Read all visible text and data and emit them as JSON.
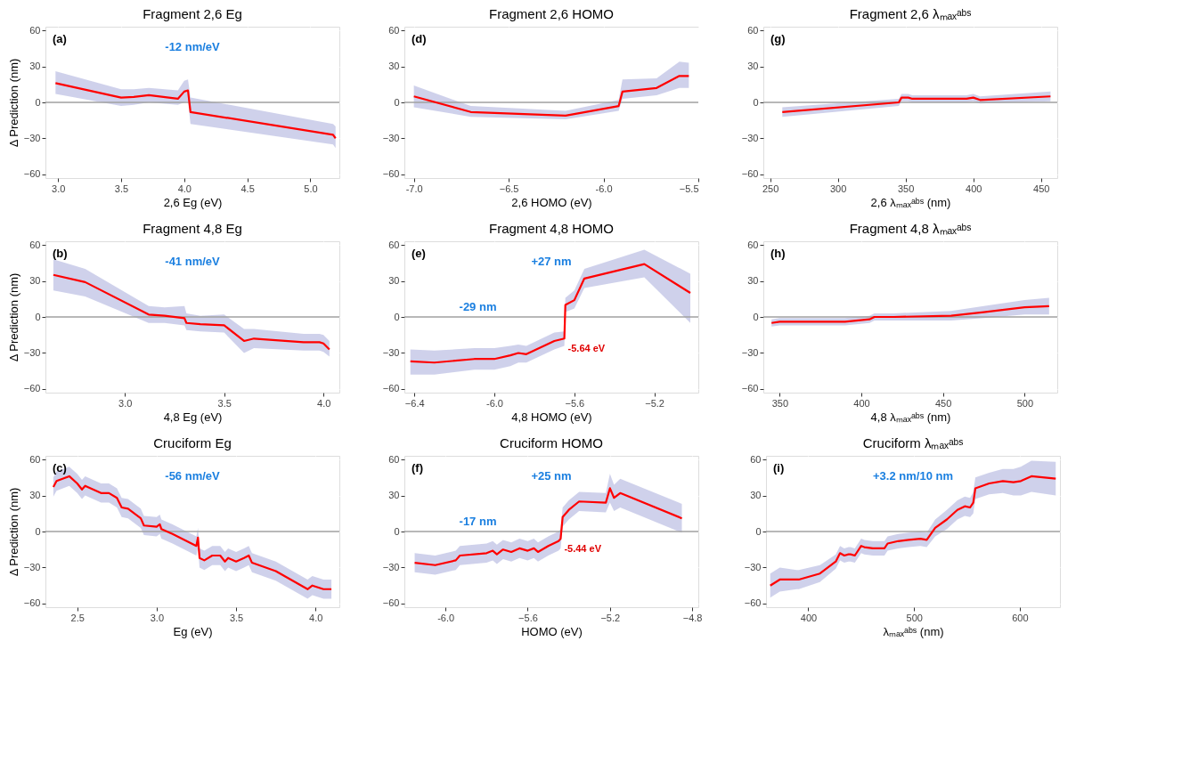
{
  "chart_data": [
    {
      "type": "line",
      "title": "Fragment 2,6 Eg",
      "xlabel": "2,6 Eg (eV)",
      "ylabel": "Δ Prediction (nm)",
      "xlim": [
        2.9,
        5.23
      ],
      "xticks": [
        {
          "value": 3,
          "label": "3.0"
        },
        3.5,
        {
          "value": 4,
          "label": "4.0"
        },
        4.5,
        {
          "value": 5,
          "label": "5.0"
        }
      ],
      "ylim": [
        -63,
        63
      ],
      "yticks": [
        -60,
        -30,
        0,
        30,
        60
      ],
      "grid": true,
      "legend": false,
      "series": [
        {
          "color": "#ff0000",
          "x": [
            2.98,
            3.5,
            3.6,
            3.72,
            3.95,
            4.0,
            4.03,
            4.05,
            5.18,
            5.2
          ],
          "values": [
            16,
            4,
            4.5,
            6,
            3,
            9,
            10,
            -8,
            -27,
            -30
          ],
          "lower": [
            7,
            -3,
            -2,
            0,
            -2,
            0,
            1,
            -18,
            -35,
            -38
          ],
          "upper": [
            26,
            11,
            11,
            12,
            10,
            18,
            19,
            4,
            -18,
            -20
          ]
        }
      ],
      "ref_lines": [
        {
          "axis": "y",
          "value": 0,
          "color": "#a0a0a0"
        }
      ],
      "annotations": [
        "(a)",
        "-12 nm/eV"
      ]
    },
    {
      "type": "line",
      "title": "Fragment 2,6 HOMO",
      "xlabel": "2,6 HOMO (eV)",
      "xlim": [
        -7.05,
        -5.5
      ],
      "xticks": [
        {
          "value": -7,
          "label": "-7.0"
        },
        -6.5,
        {
          "value": -6,
          "label": "-6.0"
        },
        -5.5
      ],
      "ylim": [
        -63,
        63
      ],
      "yticks": [
        -60,
        -30,
        0,
        30,
        60
      ],
      "grid": true,
      "legend": false,
      "series": [
        {
          "color": "#ff0000",
          "x": [
            -7.0,
            -6.7,
            -6.2,
            -5.92,
            -5.9,
            -5.72,
            -5.6,
            -5.55
          ],
          "values": [
            5,
            -8,
            -11,
            -3,
            9,
            12,
            22,
            22
          ],
          "lower": [
            -4,
            -12,
            -14,
            -7,
            3,
            6,
            12,
            12
          ],
          "upper": [
            14,
            -3,
            -7,
            2,
            19,
            20,
            34,
            33
          ]
        }
      ],
      "ref_lines": [
        {
          "axis": "y",
          "value": 0,
          "color": "#a0a0a0"
        }
      ],
      "annotations": [
        "(d)"
      ]
    },
    {
      "type": "line",
      "title": "Fragment 2,6 λₘₐₓᵃᵇˢ",
      "xlabel": "2,6 λₘₐₓᵃᵇˢ (nm)",
      "xlim": [
        245,
        462
      ],
      "xticks": [
        250,
        300,
        350,
        400,
        450
      ],
      "ylim": [
        -63,
        63
      ],
      "yticks": [
        -60,
        -30,
        0,
        30,
        60
      ],
      "grid": true,
      "legend": false,
      "series": [
        {
          "color": "#ff0000",
          "x": [
            259,
            345,
            347,
            352,
            355,
            385,
            395,
            400,
            405,
            457
          ],
          "values": [
            -8,
            0,
            4,
            4,
            3,
            3,
            3,
            4,
            2,
            5
          ],
          "lower": [
            -12,
            -3,
            1,
            1,
            0,
            0,
            0,
            1,
            -1,
            1
          ],
          "upper": [
            -4,
            3,
            7,
            7,
            6,
            6,
            6,
            7,
            5,
            9
          ]
        }
      ],
      "ref_lines": [
        {
          "axis": "y",
          "value": 0,
          "color": "#a0a0a0"
        }
      ],
      "annotations": [
        "(g)"
      ]
    },
    {
      "type": "line",
      "title": "Fragment 4,8 Eg",
      "xlabel": "4,8 Eg (eV)",
      "ylabel": "Δ Prediction (nm)",
      "xlim": [
        2.6,
        4.08
      ],
      "xticks": [
        {
          "value": 3,
          "label": "3.0"
        },
        3.5,
        {
          "value": 4,
          "label": "4.0"
        }
      ],
      "ylim": [
        -63,
        63
      ],
      "yticks": [
        -60,
        -30,
        0,
        30,
        60
      ],
      "grid": true,
      "legend": false,
      "series": [
        {
          "color": "#ff0000",
          "x": [
            2.64,
            2.8,
            3.12,
            3.2,
            3.3,
            3.31,
            3.38,
            3.5,
            3.6,
            3.65,
            3.9,
            3.98,
            4.0,
            4.03
          ],
          "values": [
            35,
            29,
            2,
            1,
            -1,
            -5,
            -6,
            -7,
            -20,
            -18,
            -21,
            -21,
            -22,
            -27
          ],
          "lower": [
            22,
            17,
            -5,
            -5,
            -7,
            -11,
            -12,
            -13,
            -30,
            -26,
            -28,
            -28,
            -29,
            -33
          ],
          "upper": [
            48,
            40,
            9,
            8,
            9,
            3,
            1,
            2,
            -10,
            -10,
            -14,
            -14,
            -15,
            -20
          ]
        }
      ],
      "ref_lines": [
        {
          "axis": "y",
          "value": 0,
          "color": "#a0a0a0"
        }
      ],
      "annotations": [
        "(b)",
        "-41 nm/eV"
      ]
    },
    {
      "type": "line",
      "title": "Fragment 4,8 HOMO",
      "xlabel": "4,8 HOMO (eV)",
      "xlim": [
        -6.45,
        -4.98
      ],
      "xticks": [
        -6.4,
        {
          "value": -6,
          "label": "-6.0"
        },
        -5.6,
        -5.2
      ],
      "ylim": [
        -63,
        63
      ],
      "yticks": [
        -60,
        -30,
        0,
        30,
        60
      ],
      "grid": true,
      "legend": false,
      "series": [
        {
          "color": "#ff0000",
          "x": [
            -6.42,
            -6.3,
            -6.1,
            -6.0,
            -5.92,
            -5.88,
            -5.84,
            -5.7,
            -5.65,
            -5.645,
            -5.6,
            -5.55,
            -5.25,
            -5.02
          ],
          "values": [
            -37,
            -38,
            -35,
            -35,
            -32,
            -30,
            -31,
            -20,
            -18,
            10,
            14,
            32,
            44,
            20
          ],
          "lower": [
            -48,
            -48,
            -44,
            -44,
            -41,
            -38,
            -38,
            -27,
            -24,
            4,
            7,
            24,
            33,
            -5
          ],
          "upper": [
            -27,
            -28,
            -26,
            -26,
            -24,
            -23,
            -24,
            -13,
            -12,
            16,
            22,
            40,
            56,
            36
          ]
        }
      ],
      "ref_lines": [
        {
          "axis": "y",
          "value": 0,
          "color": "#a0a0a0"
        }
      ],
      "annotations": [
        "(e)",
        "+27 nm",
        "-29 nm",
        {
          "text": "-5.64 eV",
          "x": -5.65,
          "y": -18
        }
      ]
    },
    {
      "type": "line",
      "title": "Fragment 4,8 λₘₐₓᵃᵇˢ",
      "xlabel": "4,8 λₘₐₓᵃᵇˢ (nm)",
      "xlim": [
        340,
        520
      ],
      "xticks": [
        350,
        400,
        450,
        500
      ],
      "ylim": [
        -63,
        63
      ],
      "yticks": [
        -60,
        -30,
        0,
        30,
        60
      ],
      "grid": true,
      "legend": false,
      "series": [
        {
          "color": "#ff0000",
          "x": [
            345,
            350,
            375,
            390,
            405,
            408,
            420,
            455,
            475,
            500,
            515
          ],
          "values": [
            -5,
            -4,
            -4,
            -4,
            -2,
            0,
            0,
            1,
            4,
            8,
            9
          ],
          "lower": [
            -8,
            -7,
            -7,
            -7,
            -5,
            -3,
            -3,
            -3,
            -1,
            2,
            2
          ],
          "upper": [
            -2,
            -1,
            -1,
            -1,
            1,
            3,
            3,
            5,
            9,
            14,
            16
          ]
        }
      ],
      "ref_lines": [
        {
          "axis": "y",
          "value": 0,
          "color": "#a0a0a0"
        }
      ],
      "annotations": [
        "(h)"
      ]
    },
    {
      "type": "line",
      "title": "Cruciform Eg",
      "xlabel": "Eg (eV)",
      "ylabel": "Δ Prediction (nm)",
      "xlim": [
        2.3,
        4.15
      ],
      "xticks": [
        2.5,
        {
          "value": 3,
          "label": "3.0"
        },
        3.5,
        {
          "value": 4,
          "label": "4.0"
        }
      ],
      "ylim": [
        -63,
        63
      ],
      "yticks": [
        -60,
        -30,
        0,
        30,
        60
      ],
      "grid": true,
      "legend": false,
      "series": [
        {
          "color": "#ff0000",
          "x": [
            2.35,
            2.37,
            2.45,
            2.5,
            2.53,
            2.55,
            2.65,
            2.7,
            2.75,
            2.78,
            2.82,
            2.87,
            2.9,
            2.92,
            3.0,
            3.02,
            3.03,
            3.1,
            3.25,
            3.26,
            3.27,
            3.3,
            3.35,
            3.4,
            3.43,
            3.45,
            3.5,
            3.55,
            3.58,
            3.6,
            3.75,
            3.95,
            3.98,
            4.05,
            4.1
          ],
          "values": [
            37,
            42,
            46,
            40,
            35,
            38,
            32,
            32,
            28,
            20,
            19,
            14,
            11,
            5,
            4,
            6,
            2,
            -2,
            -12,
            -5,
            -22,
            -24,
            -20,
            -20,
            -25,
            -22,
            -25,
            -22,
            -20,
            -26,
            -33,
            -48,
            -45,
            -48,
            -48
          ],
          "lower": [
            29,
            34,
            38,
            32,
            27,
            30,
            24,
            24,
            20,
            12,
            11,
            6,
            3,
            -3,
            -4,
            -2,
            -6,
            -10,
            -20,
            -13,
            -30,
            -32,
            -28,
            -28,
            -33,
            -30,
            -33,
            -30,
            -28,
            -34,
            -41,
            -56,
            -53,
            -56,
            -56
          ],
          "upper": [
            45,
            50,
            54,
            48,
            43,
            46,
            40,
            40,
            36,
            28,
            27,
            22,
            19,
            13,
            12,
            14,
            10,
            6,
            -4,
            3,
            -14,
            -16,
            -12,
            -12,
            -17,
            -14,
            -17,
            -14,
            -12,
            -18,
            -25,
            -40,
            -37,
            -40,
            -40
          ]
        }
      ],
      "ref_lines": [
        {
          "axis": "y",
          "value": 0,
          "color": "#a0a0a0"
        }
      ],
      "annotations": [
        "(c)",
        "-56 nm/eV"
      ]
    },
    {
      "type": "line",
      "title": "Cruciform HOMO",
      "xlabel": "HOMO (eV)",
      "xlim": [
        -6.2,
        -4.77
      ],
      "xticks": [
        {
          "value": -6,
          "label": "-6.0"
        },
        -5.6,
        -5.2,
        -4.8
      ],
      "ylim": [
        -63,
        63
      ],
      "yticks": [
        -60,
        -30,
        0,
        30,
        60
      ],
      "grid": true,
      "legend": false,
      "series": [
        {
          "color": "#ff0000",
          "x": [
            -6.15,
            -6.05,
            -5.95,
            -5.93,
            -5.8,
            -5.77,
            -5.75,
            -5.72,
            -5.68,
            -5.64,
            -5.6,
            -5.57,
            -5.55,
            -5.5,
            -5.45,
            -5.44,
            -5.43,
            -5.4,
            -5.35,
            -5.22,
            -5.2,
            -5.18,
            -5.15,
            -4.85
          ],
          "values": [
            -26,
            -28,
            -24,
            -20,
            -18,
            -16,
            -19,
            -15,
            -17,
            -14,
            -16,
            -14,
            -17,
            -12,
            -8,
            -6,
            12,
            18,
            25,
            24,
            36,
            28,
            32,
            11
          ],
          "lower": [
            -34,
            -36,
            -32,
            -28,
            -26,
            -24,
            -27,
            -23,
            -25,
            -22,
            -24,
            -22,
            -25,
            -20,
            -16,
            -14,
            4,
            10,
            17,
            16,
            24,
            17,
            20,
            -1
          ],
          "upper": [
            -18,
            -20,
            -16,
            -12,
            -10,
            -8,
            -11,
            -7,
            -9,
            -6,
            -8,
            -6,
            -9,
            -4,
            0,
            2,
            20,
            26,
            33,
            32,
            48,
            39,
            44,
            23
          ]
        }
      ],
      "ref_lines": [
        {
          "axis": "y",
          "value": 0,
          "color": "#a0a0a0"
        }
      ],
      "annotations": [
        "(f)",
        "+25 nm",
        "-17 nm",
        {
          "text": "-5.44 eV",
          "x": -5.44,
          "y": -6
        }
      ]
    },
    {
      "type": "line",
      "title": "Cruciform λₘₐₓᵃᵇˢ",
      "xlabel": "λₘₐₓᵃᵇˢ (nm)",
      "xlim": [
        360,
        638
      ],
      "xticks": [
        400,
        500,
        600
      ],
      "ylim": [
        -63,
        63
      ],
      "yticks": [
        -60,
        -30,
        0,
        30,
        60
      ],
      "grid": true,
      "legend": false,
      "series": [
        {
          "color": "#ff0000",
          "x": [
            364,
            373,
            389,
            391,
            411,
            426,
            430,
            434,
            438,
            440,
            444,
            450,
            453,
            461,
            472,
            475,
            485,
            495,
            506,
            512,
            520,
            531,
            541,
            548,
            553,
            556,
            558,
            571,
            584,
            594,
            601,
            611,
            634
          ],
          "values": [
            -45,
            -40,
            -40,
            -40,
            -35,
            -25,
            -18,
            -20,
            -19,
            -19,
            -20,
            -12,
            -13,
            -14,
            -14,
            -10,
            -8,
            -7,
            -6,
            -7,
            3,
            10,
            18,
            21,
            20,
            24,
            36,
            40,
            42,
            41,
            42,
            46,
            44
          ],
          "lower": [
            -55,
            -50,
            -48,
            -48,
            -42,
            -31,
            -24,
            -26,
            -25,
            -25,
            -26,
            -18,
            -19,
            -20,
            -20,
            -16,
            -14,
            -13,
            -12,
            -13,
            -4,
            2,
            10,
            13,
            12,
            15,
            27,
            31,
            32,
            30,
            30,
            33,
            30
          ],
          "upper": [
            -35,
            -30,
            -32,
            -32,
            -28,
            -19,
            -12,
            -14,
            -13,
            -13,
            -14,
            -6,
            -7,
            -8,
            -8,
            -4,
            -2,
            -1,
            0,
            -1,
            10,
            18,
            26,
            29,
            28,
            33,
            45,
            49,
            52,
            52,
            54,
            59,
            58
          ]
        }
      ],
      "ref_lines": [
        {
          "axis": "y",
          "value": 0,
          "color": "#a0a0a0"
        }
      ],
      "annotations": [
        "(i)",
        "+3.2 nm/10 nm"
      ]
    }
  ]
}
